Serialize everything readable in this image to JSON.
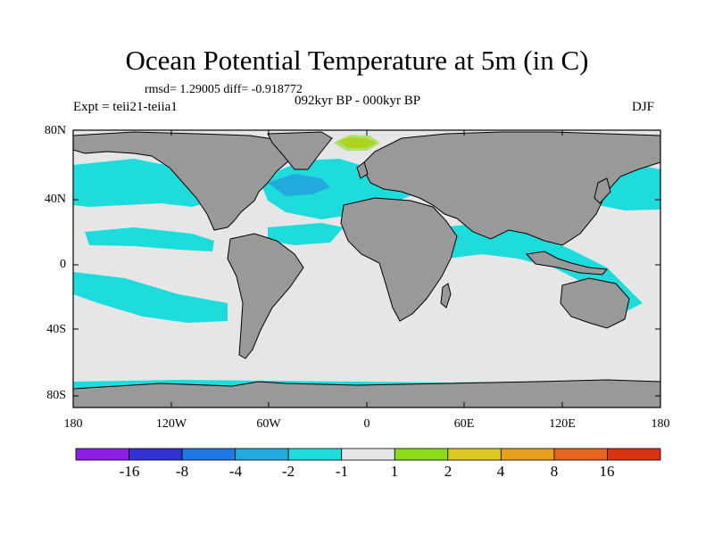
{
  "title": "Ocean Potential Temperature at 5m (in C)",
  "stats": "rmsd= 1.29005 diff= -0.918772",
  "experiment": "Expt = teii21-teiia1",
  "period": "092kyr BP - 000kyr BP",
  "season": "DJF",
  "colors": {
    "land": "#999999",
    "near_zero": "#e6e6e6",
    "coast": "#000000"
  },
  "y_ticks": [
    "80N",
    "40N",
    "0",
    "40S",
    "80S"
  ],
  "x_ticks": [
    "180",
    "120W",
    "60W",
    "0",
    "60E",
    "120E",
    "180"
  ],
  "colorbar": {
    "labels": [
      "-16",
      "-8",
      "-4",
      "-2",
      "-1",
      "1",
      "2",
      "4",
      "8",
      "16"
    ],
    "colors": [
      "#8c1ee6",
      "#3232d2",
      "#1e78e6",
      "#22aadc",
      "#1edcdc",
      "#e6e6e6",
      "#8cdc1e",
      "#dcc81e",
      "#e6a01e",
      "#e6641e",
      "#dc3214"
    ]
  }
}
